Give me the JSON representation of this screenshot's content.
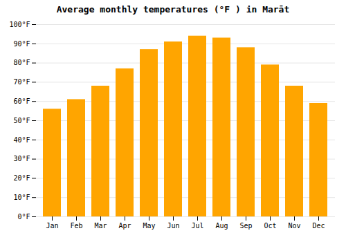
{
  "chart_data": {
    "type": "bar",
    "title": "Average monthly temperatures (°F ) in Marāt",
    "categories": [
      "Jan",
      "Feb",
      "Mar",
      "Apr",
      "May",
      "Jun",
      "Jul",
      "Aug",
      "Sep",
      "Oct",
      "Nov",
      "Dec"
    ],
    "values": [
      56,
      61,
      68,
      77,
      87,
      91,
      94,
      93,
      88,
      79,
      68,
      59
    ],
    "color": "#FFA500",
    "ylim": [
      0,
      100
    ],
    "yticks": [
      {
        "value": 0,
        "label": "0°F"
      },
      {
        "value": 10,
        "label": "10°F"
      },
      {
        "value": 20,
        "label": "20°F"
      },
      {
        "value": 30,
        "label": "30°F"
      },
      {
        "value": 40,
        "label": "40°F"
      },
      {
        "value": 50,
        "label": "50°F"
      },
      {
        "value": 60,
        "label": "60°F"
      },
      {
        "value": 70,
        "label": "70°F"
      },
      {
        "value": 80,
        "label": "80°F"
      },
      {
        "value": 90,
        "label": "90°F"
      },
      {
        "value": 100,
        "label": "100°F"
      }
    ],
    "grid": true
  }
}
